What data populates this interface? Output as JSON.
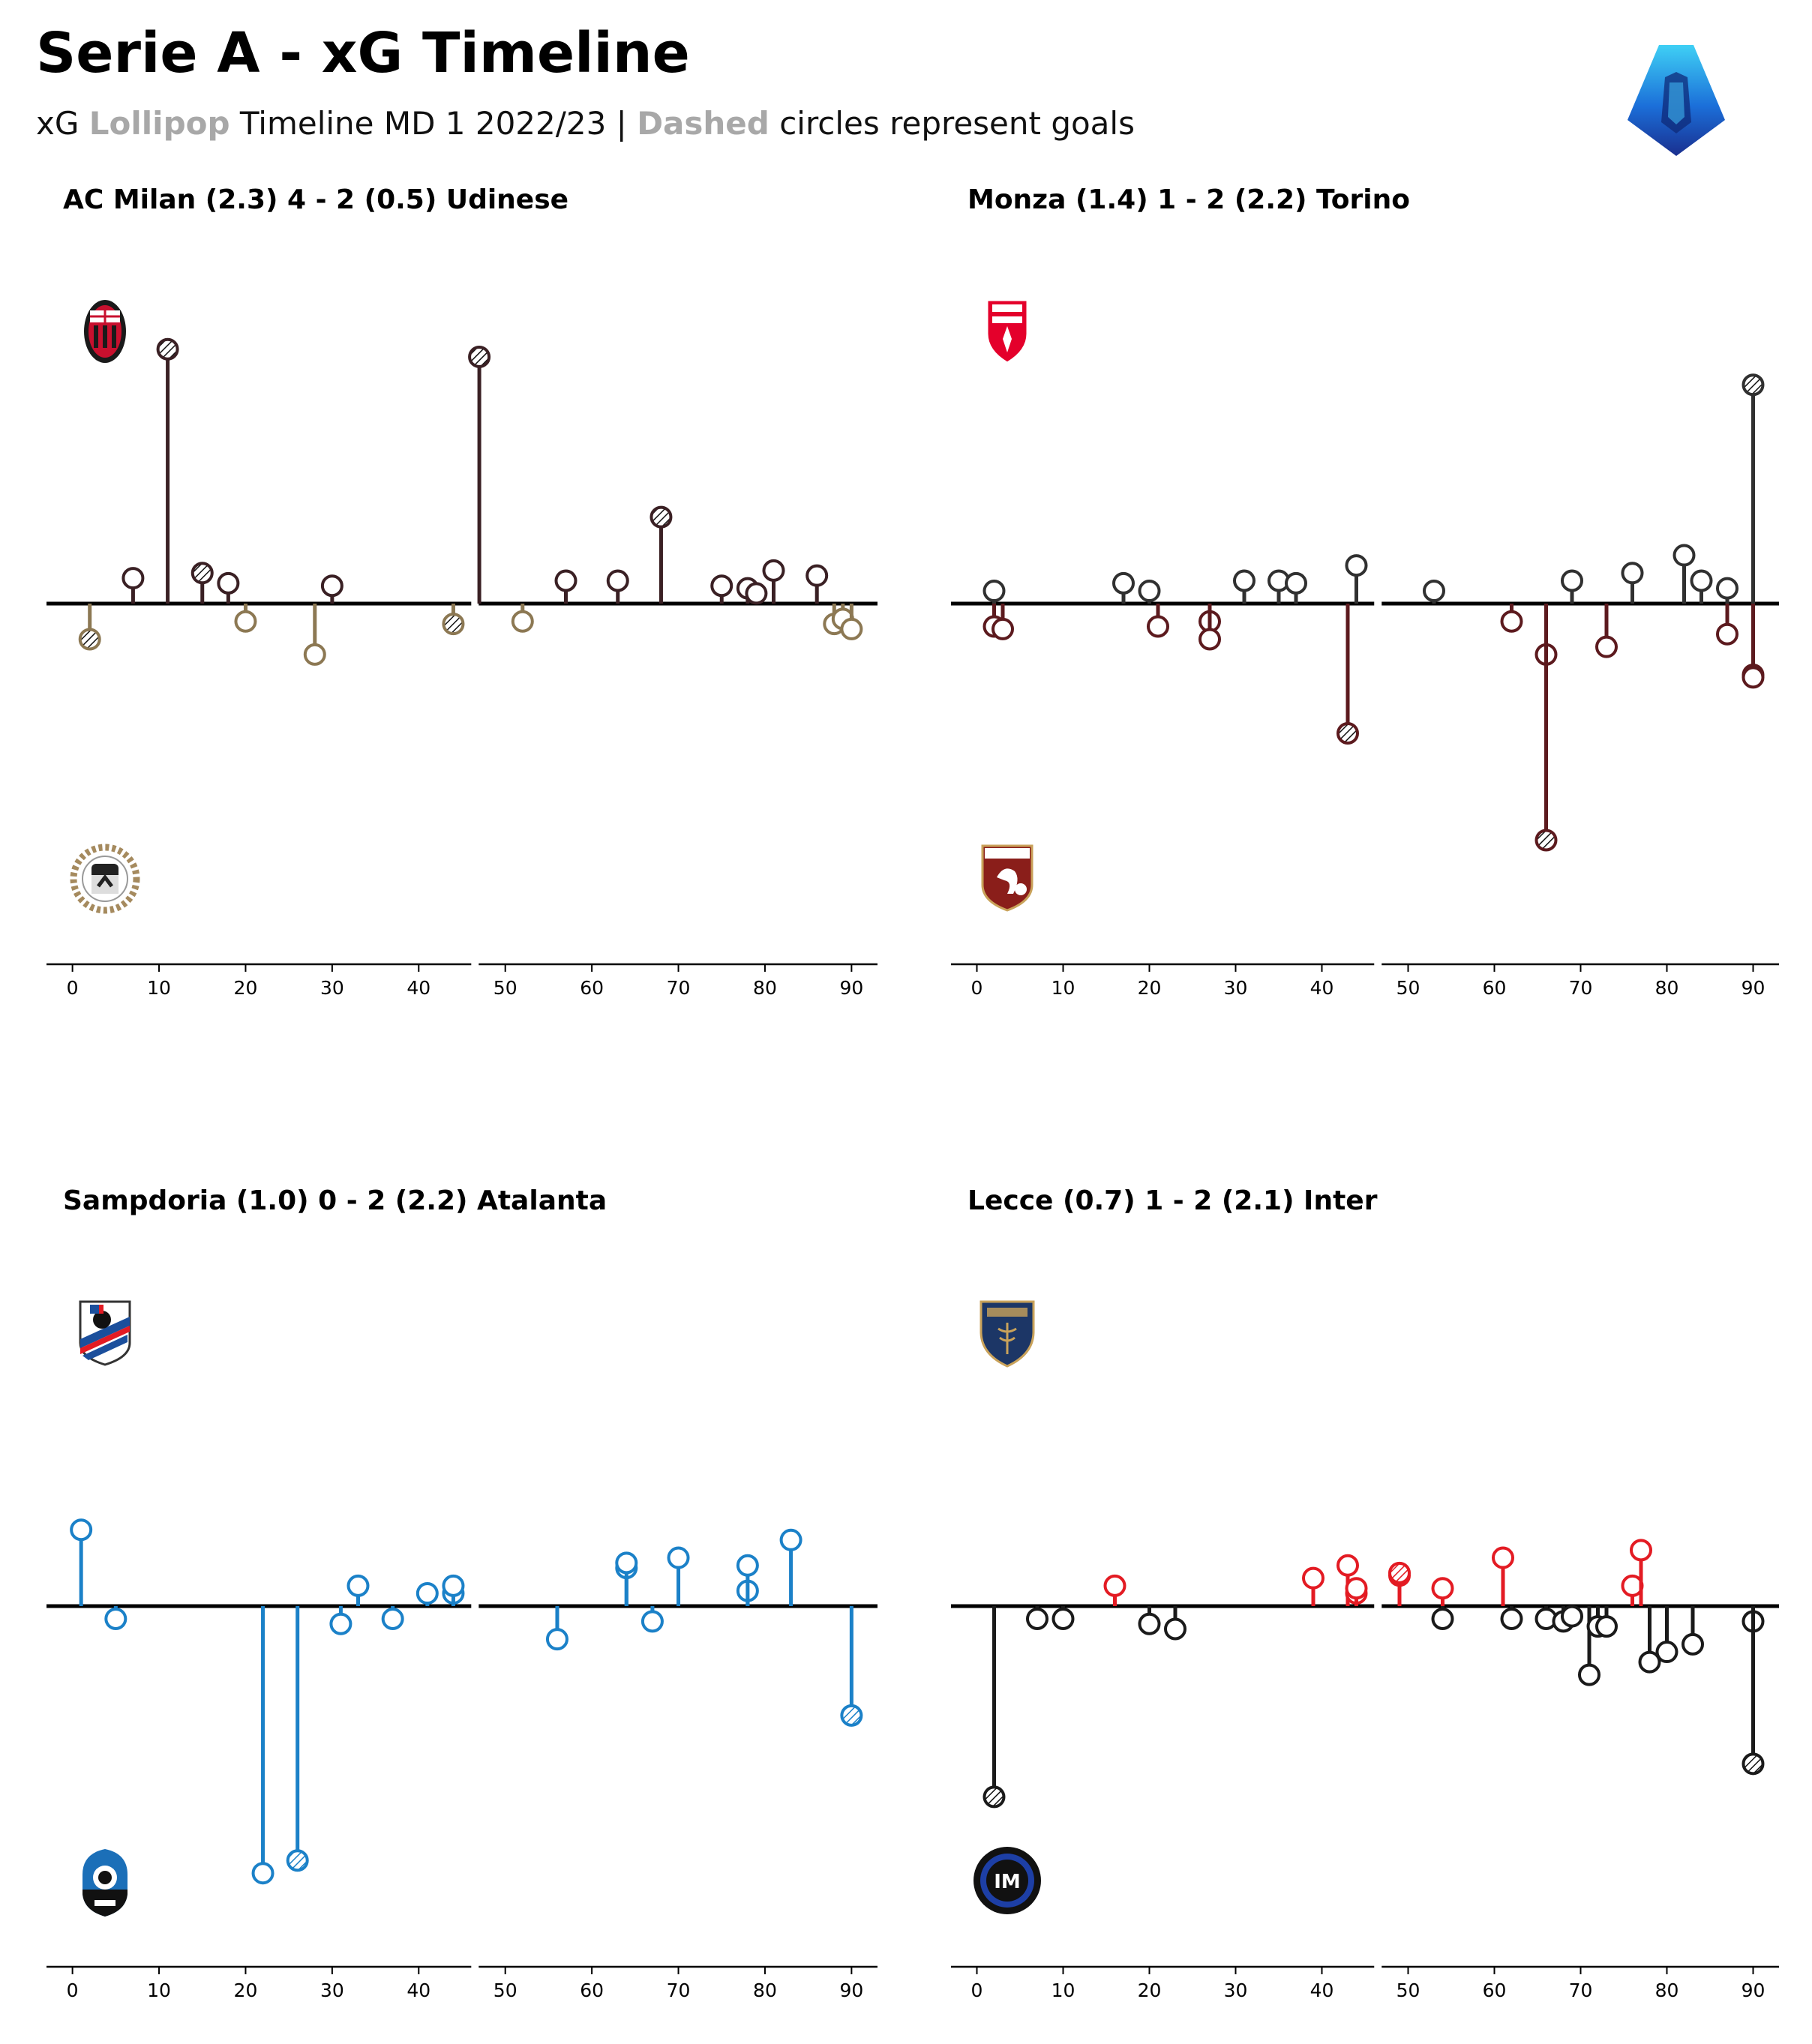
{
  "header": {
    "title": "Serie A - xG Timeline",
    "subtitle": {
      "part1": "xG ",
      "highlight1": "Lollipop",
      "part2": " Timeline MD 1 2022/23 | ",
      "highlight2": "Dashed",
      "part3": " circles represent goals"
    },
    "logo_icon": "serie-a-logo"
  },
  "colors": {
    "axis": "#000000",
    "highlight_text": "#a8a8a8"
  },
  "chart_data": [
    {
      "type": "lollipop",
      "title": "AC Milan (2.3) 4 - 2 (0.5) Udinese",
      "home": {
        "name": "AC Milan",
        "color": "#3a2024",
        "badge_icon": "ac-milan-badge"
      },
      "away": {
        "name": "Udinese",
        "color": "#8c7853",
        "badge_icon": "udinese-badge"
      },
      "xlim": [
        -3,
        93
      ],
      "ylim": [
        -0.65,
        0.65
      ],
      "xticks": [
        0,
        10,
        20,
        30,
        40,
        50,
        60,
        70,
        80,
        90
      ],
      "home_shots": [
        {
          "minute": 7,
          "xg": 0.05,
          "goal": false
        },
        {
          "minute": 11,
          "xg": 0.5,
          "goal": true
        },
        {
          "minute": 15,
          "xg": 0.06,
          "goal": true
        },
        {
          "minute": 18,
          "xg": 0.04,
          "goal": false
        },
        {
          "minute": 30,
          "xg": 0.035,
          "goal": false
        },
        {
          "minute": 47,
          "xg": 0.485,
          "goal": true
        },
        {
          "minute": 57,
          "xg": 0.045,
          "goal": false
        },
        {
          "minute": 63,
          "xg": 0.045,
          "goal": false
        },
        {
          "minute": 68,
          "xg": 0.17,
          "goal": true
        },
        {
          "minute": 75,
          "xg": 0.035,
          "goal": false
        },
        {
          "minute": 78,
          "xg": 0.03,
          "goal": false
        },
        {
          "minute": 79,
          "xg": 0.02,
          "goal": false
        },
        {
          "minute": 81,
          "xg": 0.065,
          "goal": false
        },
        {
          "minute": 86,
          "xg": 0.055,
          "goal": false
        }
      ],
      "away_shots": [
        {
          "minute": 2,
          "xg": 0.07,
          "goal": true
        },
        {
          "minute": 20,
          "xg": 0.035,
          "goal": false
        },
        {
          "minute": 28,
          "xg": 0.1,
          "goal": false
        },
        {
          "minute": 44,
          "xg": 0.04,
          "goal": true
        },
        {
          "minute": 52,
          "xg": 0.035,
          "goal": false
        },
        {
          "minute": 88,
          "xg": 0.04,
          "goal": false
        },
        {
          "minute": 89,
          "xg": 0.03,
          "goal": false
        },
        {
          "minute": 90,
          "xg": 0.05,
          "goal": false
        }
      ]
    },
    {
      "type": "lollipop",
      "title": "Monza (1.4) 1 - 2 (2.2) Torino",
      "home": {
        "name": "Monza",
        "color": "#303030",
        "badge_icon": "monza-badge"
      },
      "away": {
        "name": "Torino",
        "color": "#5c1a1e",
        "badge_icon": "torino-badge"
      },
      "xlim": [
        -3,
        93
      ],
      "ylim": [
        -0.65,
        0.65
      ],
      "xticks": [
        0,
        10,
        20,
        30,
        40,
        50,
        60,
        70,
        80,
        90
      ],
      "home_shots": [
        {
          "minute": 2,
          "xg": 0.025,
          "goal": false
        },
        {
          "minute": 17,
          "xg": 0.04,
          "goal": false
        },
        {
          "minute": 20,
          "xg": 0.025,
          "goal": false
        },
        {
          "minute": 31,
          "xg": 0.045,
          "goal": false
        },
        {
          "minute": 35,
          "xg": 0.045,
          "goal": false
        },
        {
          "minute": 37,
          "xg": 0.04,
          "goal": false
        },
        {
          "minute": 44,
          "xg": 0.075,
          "goal": false
        },
        {
          "minute": 53,
          "xg": 0.025,
          "goal": false
        },
        {
          "minute": 69,
          "xg": 0.045,
          "goal": false
        },
        {
          "minute": 76,
          "xg": 0.06,
          "goal": false
        },
        {
          "minute": 82,
          "xg": 0.095,
          "goal": false
        },
        {
          "minute": 84,
          "xg": 0.045,
          "goal": false
        },
        {
          "minute": 87,
          "xg": 0.03,
          "goal": false
        },
        {
          "minute": 90,
          "xg": 0.43,
          "goal": true
        }
      ],
      "away_shots": [
        {
          "minute": 2,
          "xg": 0.045,
          "goal": false
        },
        {
          "minute": 3,
          "xg": 0.05,
          "goal": false
        },
        {
          "minute": 21,
          "xg": 0.045,
          "goal": false
        },
        {
          "minute": 27,
          "xg": 0.035,
          "goal": false
        },
        {
          "minute": 27,
          "xg": 0.07,
          "goal": false
        },
        {
          "minute": 43,
          "xg": 0.255,
          "goal": true
        },
        {
          "minute": 62,
          "xg": 0.035,
          "goal": false
        },
        {
          "minute": 66,
          "xg": 0.1,
          "goal": false
        },
        {
          "minute": 66,
          "xg": 0.465,
          "goal": true
        },
        {
          "minute": 73,
          "xg": 0.085,
          "goal": false
        },
        {
          "minute": 87,
          "xg": 0.06,
          "goal": false
        },
        {
          "minute": 90,
          "xg": 0.14,
          "goal": false
        },
        {
          "minute": 90,
          "xg": 0.145,
          "goal": false
        }
      ]
    },
    {
      "type": "lollipop",
      "title": "Sampdoria (1.0) 0 - 2 (2.2) Atalanta",
      "home": {
        "name": "Sampdoria",
        "color": "#1b81c8",
        "badge_icon": "sampdoria-badge"
      },
      "away": {
        "name": "Atalanta",
        "color": "#1b81c8",
        "badge_icon": "atalanta-badge"
      },
      "xlim": [
        -3,
        93
      ],
      "ylim": [
        -0.65,
        0.65
      ],
      "xticks": [
        0,
        10,
        20,
        30,
        40,
        50,
        60,
        70,
        80,
        90
      ],
      "home_shots": [
        {
          "minute": 1,
          "xg": 0.15,
          "goal": false
        },
        {
          "minute": 33,
          "xg": 0.04,
          "goal": false
        },
        {
          "minute": 41,
          "xg": 0.025,
          "goal": false
        },
        {
          "minute": 44,
          "xg": 0.025,
          "goal": false
        },
        {
          "minute": 44,
          "xg": 0.04,
          "goal": false
        },
        {
          "minute": 64,
          "xg": 0.075,
          "goal": false
        },
        {
          "minute": 64,
          "xg": 0.085,
          "goal": false
        },
        {
          "minute": 70,
          "xg": 0.095,
          "goal": false
        },
        {
          "minute": 78,
          "xg": 0.03,
          "goal": false
        },
        {
          "minute": 78,
          "xg": 0.08,
          "goal": false
        },
        {
          "minute": 83,
          "xg": 0.13,
          "goal": false
        }
      ],
      "away_shots": [
        {
          "minute": 5,
          "xg": 0.025,
          "goal": false
        },
        {
          "minute": 22,
          "xg": 0.525,
          "goal": false
        },
        {
          "minute": 26,
          "xg": 0.5,
          "goal": true
        },
        {
          "minute": 31,
          "xg": 0.035,
          "goal": false
        },
        {
          "minute": 37,
          "xg": 0.025,
          "goal": false
        },
        {
          "minute": 56,
          "xg": 0.065,
          "goal": false
        },
        {
          "minute": 67,
          "xg": 0.03,
          "goal": false
        },
        {
          "minute": 90,
          "xg": 0.215,
          "goal": true
        }
      ]
    },
    {
      "type": "lollipop",
      "title": "Lecce (0.7) 1 - 2 (2.1) Inter",
      "home": {
        "name": "Lecce",
        "color": "#e31b23",
        "badge_icon": "lecce-badge"
      },
      "away": {
        "name": "Inter",
        "color": "#1a1a1a",
        "badge_icon": "inter-badge"
      },
      "xlim": [
        -3,
        93
      ],
      "ylim": [
        -0.65,
        0.65
      ],
      "xticks": [
        0,
        10,
        20,
        30,
        40,
        50,
        60,
        70,
        80,
        90
      ],
      "home_shots": [
        {
          "minute": 16,
          "xg": 0.04,
          "goal": false
        },
        {
          "minute": 39,
          "xg": 0.055,
          "goal": false
        },
        {
          "minute": 43,
          "xg": 0.08,
          "goal": false
        },
        {
          "minute": 44,
          "xg": 0.025,
          "goal": false
        },
        {
          "minute": 44,
          "xg": 0.035,
          "goal": false
        },
        {
          "minute": 49,
          "xg": 0.06,
          "goal": false
        },
        {
          "minute": 49,
          "xg": 0.065,
          "goal": true
        },
        {
          "minute": 54,
          "xg": 0.035,
          "goal": false
        },
        {
          "minute": 61,
          "xg": 0.095,
          "goal": false
        },
        {
          "minute": 76,
          "xg": 0.04,
          "goal": false
        },
        {
          "minute": 77,
          "xg": 0.11,
          "goal": false
        }
      ],
      "away_shots": [
        {
          "minute": 2,
          "xg": 0.375,
          "goal": true
        },
        {
          "minute": 7,
          "xg": 0.025,
          "goal": false
        },
        {
          "minute": 10,
          "xg": 0.025,
          "goal": false
        },
        {
          "minute": 20,
          "xg": 0.035,
          "goal": false
        },
        {
          "minute": 23,
          "xg": 0.045,
          "goal": false
        },
        {
          "minute": 54,
          "xg": 0.025,
          "goal": false
        },
        {
          "minute": 62,
          "xg": 0.025,
          "goal": false
        },
        {
          "minute": 66,
          "xg": 0.025,
          "goal": false
        },
        {
          "minute": 68,
          "xg": 0.03,
          "goal": false
        },
        {
          "minute": 69,
          "xg": 0.02,
          "goal": false
        },
        {
          "minute": 71,
          "xg": 0.135,
          "goal": false
        },
        {
          "minute": 72,
          "xg": 0.04,
          "goal": false
        },
        {
          "minute": 73,
          "xg": 0.04,
          "goal": false
        },
        {
          "minute": 78,
          "xg": 0.11,
          "goal": false
        },
        {
          "minute": 80,
          "xg": 0.09,
          "goal": false
        },
        {
          "minute": 83,
          "xg": 0.075,
          "goal": false
        },
        {
          "minute": 90,
          "xg": 0.03,
          "goal": false
        },
        {
          "minute": 90,
          "xg": 0.31,
          "goal": true
        }
      ]
    }
  ]
}
